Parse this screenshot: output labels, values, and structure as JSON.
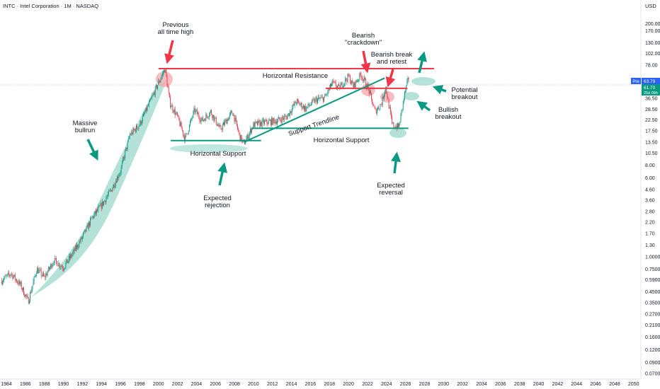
{
  "header": {
    "symbol_title": "INTC · Intel Corporation · 1M · NASDAQ",
    "currency": "USD"
  },
  "price_badges": {
    "prepost_label": "Pre",
    "prepost_value": "63.79",
    "last_price": "61.70",
    "countdown": "25d 09h"
  },
  "colors": {
    "up": "#089981",
    "down": "#f23645",
    "resistance": "#f23645",
    "support": "#089981",
    "zone_teal": "#82cfbf",
    "zone_red": "#f7a5ad",
    "prepost_badge": "#2962ff"
  },
  "annotations": {
    "previous_ath": [
      "Previous",
      "all time high"
    ],
    "massive_bullrun": [
      "Massive",
      "bullrun"
    ],
    "horizontal_resistance": "Horizontal Resistance",
    "bearish_crackdown": [
      "Bearish",
      "\"crackdown\""
    ],
    "bearish_break_retest": [
      "Bearish break",
      "and retest"
    ],
    "potential_breakout": [
      "Potential",
      "breakout"
    ],
    "bullish_breakout": [
      "Bullish",
      "breakout"
    ],
    "support_trendline": "Support Trendline",
    "horizontal_support_left": "Horizontal Support",
    "horizontal_support_right": "Horizontal Support",
    "expected_rejection": [
      "Expected",
      "rejection"
    ],
    "expected_reversal": [
      "Expected",
      "reversal"
    ]
  },
  "chart_data": {
    "type": "candlestick",
    "scale": "log",
    "timeframe": "1M",
    "x_ticks": [
      "1984",
      "1986",
      "1988",
      "1990",
      "1992",
      "1994",
      "1996",
      "1998",
      "2000",
      "2002",
      "2004",
      "2006",
      "2008",
      "2010",
      "2012",
      "2014",
      "2016",
      "2018",
      "2020",
      "2022",
      "2024",
      "2026",
      "2028",
      "2030",
      "2032",
      "2034",
      "2036",
      "2038",
      "2040",
      "2042",
      "2044",
      "2046",
      "2048",
      "2050"
    ],
    "y_ticks": [
      "280.00",
      "200.00",
      "170.00",
      "130.00",
      "102.00",
      "78.00",
      "46.50",
      "36.50",
      "28.50",
      "22.50",
      "17.50",
      "13.50",
      "10.50",
      "8.00",
      "6.00",
      "4.60",
      "3.60",
      "2.80",
      "2.20",
      "1.70",
      "1.30",
      "1.0000",
      "0.7500",
      "0.5900",
      "0.4500",
      "0.3500",
      "0.2700",
      "0.2100",
      "0.1600",
      "0.1200",
      "0.0900",
      "0.0700"
    ],
    "price_path": [
      [
        1983.5,
        0.58
      ],
      [
        1984.5,
        0.68
      ],
      [
        1985.5,
        0.52
      ],
      [
        1986.3,
        0.36
      ],
      [
        1987.2,
        0.75
      ],
      [
        1988.0,
        0.62
      ],
      [
        1989.0,
        0.92
      ],
      [
        1990.0,
        0.78
      ],
      [
        1991.0,
        1.08
      ],
      [
        1992.0,
        1.55
      ],
      [
        1993.0,
        2.4
      ],
      [
        1994.0,
        3.2
      ],
      [
        1995.0,
        4.5
      ],
      [
        1996.0,
        7.0
      ],
      [
        1997.0,
        16.0
      ],
      [
        1998.0,
        20.0
      ],
      [
        1999.0,
        32.0
      ],
      [
        2000.0,
        52.0
      ],
      [
        2000.7,
        72.0
      ],
      [
        2001.2,
        33.0
      ],
      [
        2002.0,
        24.0
      ],
      [
        2002.8,
        14.5
      ],
      [
        2003.8,
        28.0
      ],
      [
        2004.6,
        22.0
      ],
      [
        2005.5,
        27.0
      ],
      [
        2006.5,
        18.0
      ],
      [
        2007.8,
        27.0
      ],
      [
        2008.6,
        15.0
      ],
      [
        2009.0,
        13.0
      ],
      [
        2010.0,
        20.0
      ],
      [
        2011.0,
        21.0
      ],
      [
        2012.5,
        22.0
      ],
      [
        2013.5,
        24.0
      ],
      [
        2014.5,
        34.0
      ],
      [
        2015.5,
        29.0
      ],
      [
        2016.5,
        35.0
      ],
      [
        2017.5,
        37.0
      ],
      [
        2018.3,
        52.0
      ],
      [
        2019.0,
        46.0
      ],
      [
        2020.0,
        60.0
      ],
      [
        2020.5,
        48.0
      ],
      [
        2021.3,
        63.0
      ],
      [
        2022.0,
        48.0
      ],
      [
        2022.8,
        27.0
      ],
      [
        2023.5,
        33.0
      ],
      [
        2023.9,
        48.0
      ],
      [
        2024.6,
        20.0
      ],
      [
        2025.3,
        19.0
      ],
      [
        2025.9,
        40.0
      ],
      [
        2026.4,
        61.7
      ]
    ],
    "levels": {
      "horizontal_resistance": 72.0,
      "bearish_retest_line": 46.0,
      "horizontal_support_left": 14.0,
      "horizontal_support_right": 18.5
    },
    "support_trendline": [
      [
        2009.0,
        13.5
      ],
      [
        2023.8,
        58.0
      ]
    ],
    "current_price": 61.7
  }
}
